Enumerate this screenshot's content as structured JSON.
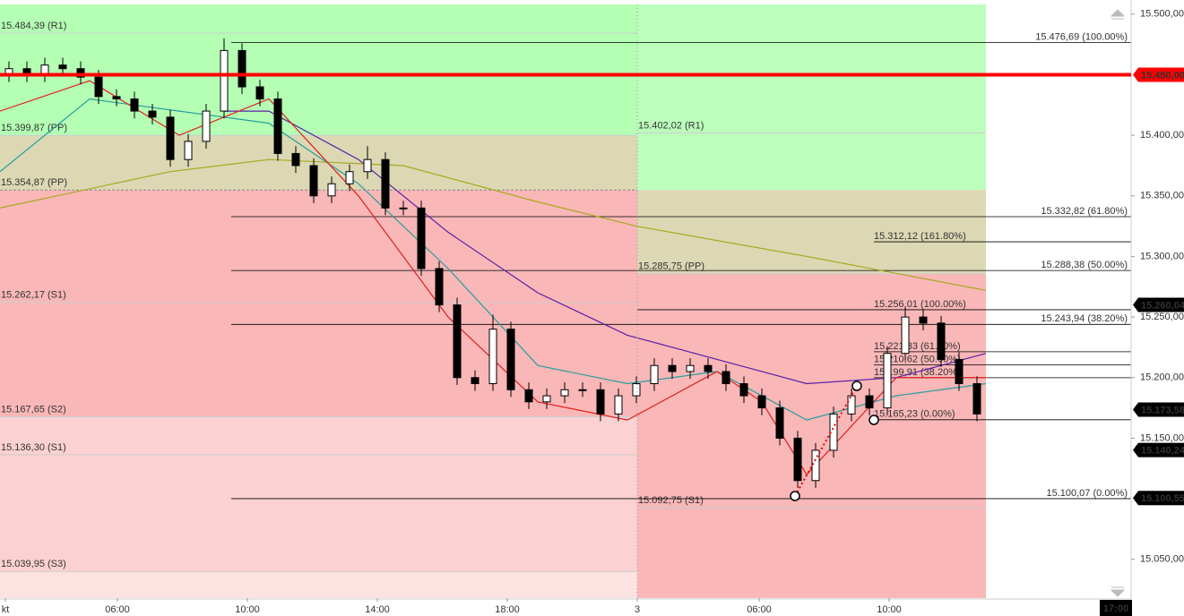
{
  "chart_data": {
    "type": "candlestick",
    "xlim": [
      0,
      63.1
    ],
    "ylim": [
      15018,
      15508
    ],
    "xticks": [
      {
        "value": 0.3,
        "label": "kt"
      },
      {
        "value": 6.55,
        "label": "06:00"
      },
      {
        "value": 13.8,
        "label": "10:00"
      },
      {
        "value": 21.05,
        "label": "14:00"
      },
      {
        "value": 28.3,
        "label": "18:00"
      },
      {
        "value": 35.55,
        "label": "3"
      },
      {
        "value": 42.35,
        "label": "06:00"
      },
      {
        "value": 49.6,
        "label": "10:00"
      }
    ],
    "cursor_time": {
      "value": 62.25,
      "label": "17:00"
    },
    "yticks": [
      {
        "value": 15500,
        "label": "15.500,00"
      },
      {
        "value": 15400,
        "label": "15.400,00"
      },
      {
        "value": 15350,
        "label": "15.350,00"
      },
      {
        "value": 15300,
        "label": "15.300,00"
      },
      {
        "value": 15250,
        "label": "15.250,00"
      },
      {
        "value": 15200,
        "label": "15.200,00"
      },
      {
        "value": 15150,
        "label": "15.150,00"
      },
      {
        "value": 15050,
        "label": "15.050,00"
      }
    ],
    "x": [
      0.5,
      1.5,
      2.5,
      3.5,
      4.5,
      5.5,
      6.5,
      7.5,
      8.5,
      9.5,
      10.5,
      11.5,
      12.5,
      13.5,
      14.5,
      15.5,
      16.5,
      17.5,
      18.5,
      19.5,
      20.5,
      21.5,
      22.5,
      23.5,
      24.5,
      25.5,
      26.5,
      27.5,
      28.5,
      29.5,
      30.5,
      31.5,
      32.5,
      33.5,
      34.5,
      35.5,
      36.5,
      37.5,
      38.5,
      39.5,
      40.5,
      41.5,
      42.5,
      43.5,
      44.5,
      45.5,
      46.5,
      47.5,
      48.5,
      49.5,
      50.5,
      51.5,
      52.5,
      53.5,
      54.5
    ],
    "open": [
      15450,
      15455,
      15450,
      15458,
      15455,
      15448,
      15432,
      15430,
      15420,
      15415,
      15380,
      15395,
      15420,
      15470,
      15440,
      15430,
      15385,
      15375,
      15350,
      15360,
      15370,
      15380,
      15340,
      15340,
      15290,
      15260,
      15200,
      15195,
      15240,
      15190,
      15180,
      15185,
      15190,
      15190,
      15170,
      15185,
      15195,
      15210,
      15205,
      15210,
      15205,
      15195,
      15185,
      15175,
      15150,
      15115,
      15140,
      15170,
      15185,
      15175,
      15220,
      15250,
      15245,
      15215,
      15195
    ],
    "high": [
      15461,
      15461,
      15464,
      15464,
      15461,
      15454,
      15438,
      15436,
      15426,
      15421,
      15401,
      15426,
      15480,
      15476,
      15446,
      15436,
      15391,
      15381,
      15366,
      15376,
      15391,
      15386,
      15346,
      15346,
      15296,
      15266,
      15206,
      15252,
      15246,
      15196,
      15191,
      15196,
      15196,
      15196,
      15191,
      15201,
      15216,
      15216,
      15216,
      15216,
      15211,
      15201,
      15191,
      15181,
      15156,
      15146,
      15176,
      15191,
      15191,
      15226,
      15258,
      15256,
      15251,
      15221,
      15201
    ],
    "low": [
      15444,
      15444,
      15444,
      15449,
      15442,
      15426,
      15424,
      15414,
      15409,
      15374,
      15374,
      15389,
      15414,
      15434,
      15424,
      15379,
      15369,
      15344,
      15344,
      15354,
      15364,
      15334,
      15334,
      15284,
      15254,
      15194,
      15189,
      15189,
      15184,
      15174,
      15174,
      15179,
      15184,
      15164,
      15164,
      15179,
      15189,
      15199,
      15199,
      15199,
      15189,
      15179,
      15169,
      15144,
      15109,
      15109,
      15134,
      15164,
      15169,
      15169,
      15214,
      15239,
      15209,
      15189,
      15164
    ],
    "close": [
      15455,
      15450,
      15458,
      15455,
      15448,
      15432,
      15430,
      15420,
      15415,
      15380,
      15395,
      15420,
      15470,
      15440,
      15430,
      15385,
      15375,
      15350,
      15360,
      15370,
      15380,
      15340,
      15340,
      15290,
      15260,
      15200,
      15195,
      15240,
      15190,
      15180,
      15185,
      15190,
      15190,
      15170,
      15185,
      15195,
      15210,
      15205,
      15210,
      15205,
      15195,
      15185,
      15175,
      15150,
      15115,
      15140,
      15170,
      15185,
      15175,
      15220,
      15250,
      15245,
      15215,
      15195,
      15170
    ],
    "series": [
      {
        "color": "#a8a820",
        "x": [
          0,
          9.5,
          15,
          22.5,
          30,
          35.5,
          45,
          55
        ],
        "values": [
          15340,
          15370,
          15380,
          15375,
          15345,
          15325,
          15300,
          15272
        ]
      },
      {
        "color": "#5a1fa8",
        "x": [
          12.5,
          15,
          20,
          25,
          30,
          35,
          40,
          45,
          50,
          55
        ],
        "values": [
          15420,
          15420,
          15380,
          15320,
          15270,
          15235,
          15215,
          15195,
          15200,
          15220
        ]
      },
      {
        "color": "#2a9d9d",
        "x": [
          0,
          5,
          10,
          15,
          20,
          25,
          30,
          35,
          40,
          45,
          50,
          55
        ],
        "values": [
          15370,
          15430,
          15420,
          15410,
          15360,
          15290,
          15210,
          15195,
          15205,
          15165,
          15185,
          15195
        ]
      },
      {
        "color": "#e02020",
        "x": [
          0,
          5,
          10,
          15,
          20,
          25,
          30,
          35,
          40,
          42.5,
          45,
          50,
          55
        ],
        "values": [
          15420,
          15445,
          15400,
          15430,
          15350,
          15250,
          15180,
          15165,
          15205,
          15180,
          15120,
          15200,
          15200
        ]
      }
    ],
    "pivots_day1": [
      {
        "label": "15.484,39 (R1)",
        "value": 15484.39
      },
      {
        "label": "15.399,87 (PP)",
        "value": 15399.87
      },
      {
        "label": "15.354,87 (PP)",
        "value": 15354.87
      },
      {
        "label": "15.262,17 (S1)",
        "value": 15262.17
      },
      {
        "label": "15.167,65 (S2)",
        "value": 15167.65
      },
      {
        "label": "15.136,30 (S1)",
        "value": 15136.3
      },
      {
        "label": "15.039,95 (S3)",
        "value": 15039.95
      }
    ],
    "pivots_day2": [
      {
        "label": "15.402,02 (R1)",
        "value": 15402.02
      },
      {
        "label": "15.285,75 (PP)",
        "value": 15285.75
      },
      {
        "label": "15.092,75 (S1)",
        "value": 15092.75
      }
    ],
    "fib_long": [
      {
        "label": "15.476,69 (100.00%)",
        "value": 15476.69
      },
      {
        "label": "15.332,82 (61.80%)",
        "value": 15332.82
      },
      {
        "label": "15.288,38 (50.00%)",
        "value": 15288.38
      },
      {
        "label": "15.243,94 (38.20%)",
        "value": 15243.94
      },
      {
        "label": "15.100,07 (0.00%)",
        "value": 15100.07
      }
    ],
    "fib_short": [
      {
        "label": "15.312,12 (161.80%)",
        "value": 15312.12
      },
      {
        "label": "15.256,01 (100.00%)",
        "value": 15256.01
      },
      {
        "label": "15.221,33 (61.80%)",
        "value": 15221.33
      },
      {
        "label": "15.210,62 (50.00%)",
        "value": 15210.62
      },
      {
        "label": "15.199,91 (38.20%)",
        "value": 15199.91
      },
      {
        "label": "15.165,23 (0.00%)",
        "value": 15165.23
      }
    ],
    "price_tags": [
      {
        "label": "15.450,00",
        "value": 15450,
        "color": "#ff0000"
      },
      {
        "label": "15.260,04",
        "value": 15260.04,
        "color": "#000000"
      },
      {
        "label": "15.173,58",
        "value": 15173.58,
        "color": "#000000"
      },
      {
        "label": "15.140,24",
        "value": 15140.24,
        "color": "#000000"
      },
      {
        "label": "15.100,55",
        "value": 15100.55,
        "color": "#000000"
      }
    ]
  }
}
